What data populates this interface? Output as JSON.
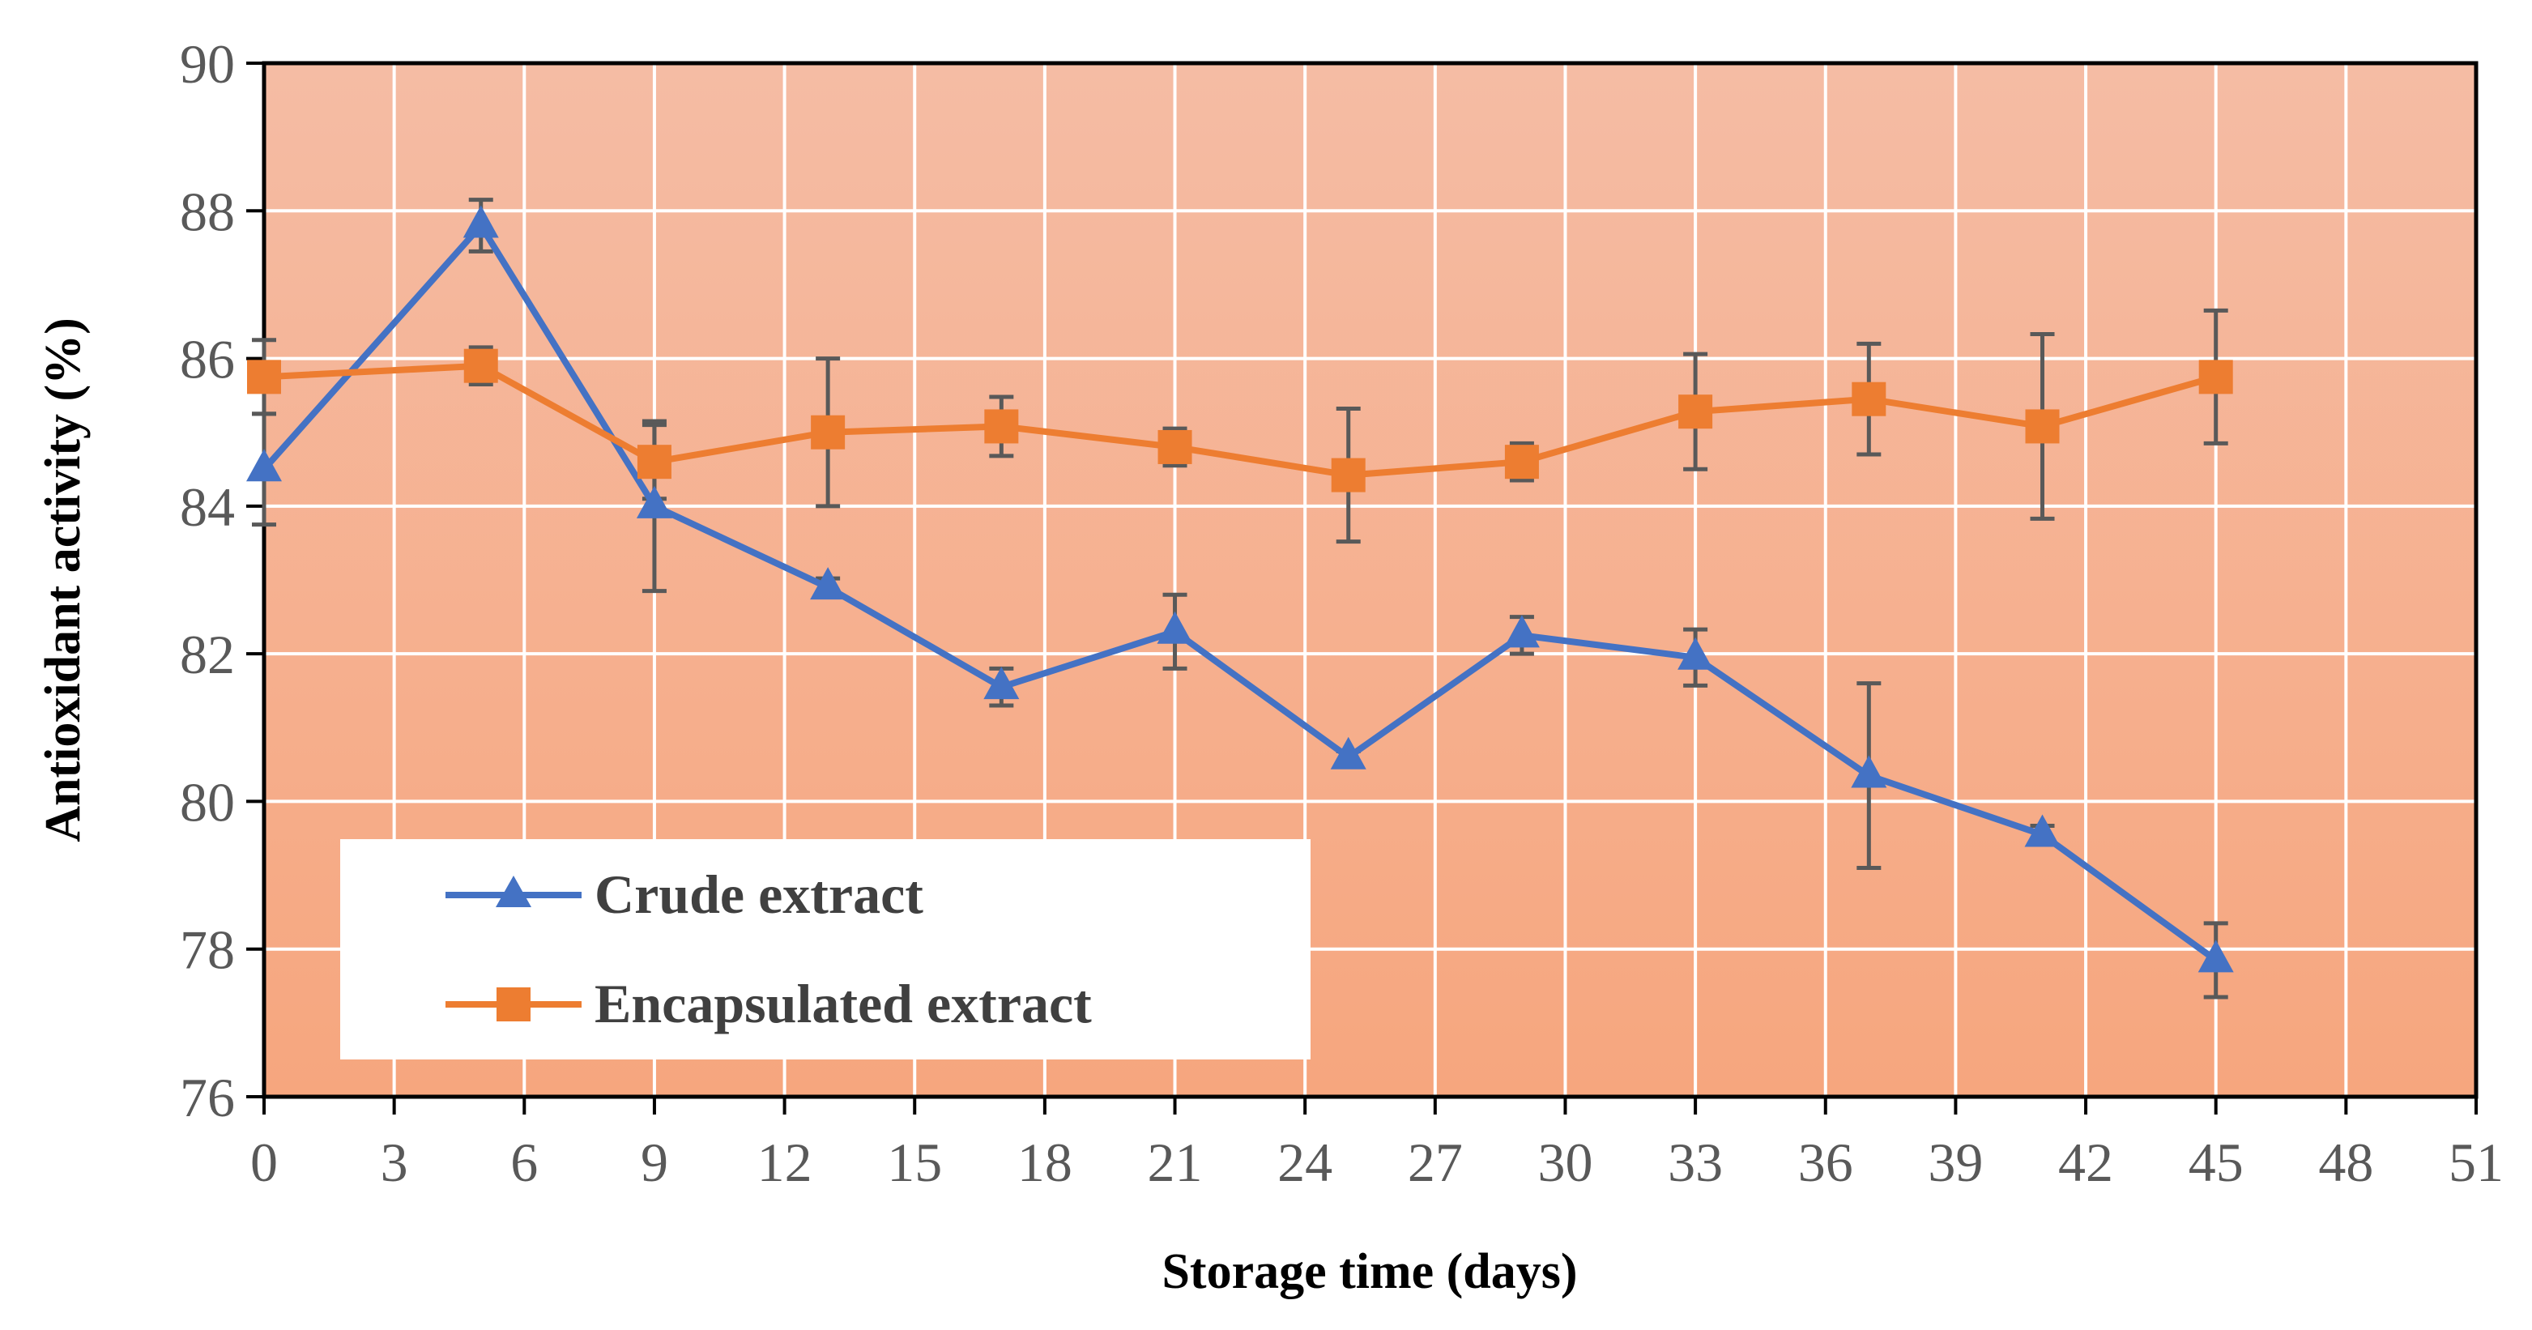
{
  "chart_data": {
    "type": "line",
    "title": "",
    "xlabel": "Storage time (days)",
    "ylabel": "Antioxidant activity (%)",
    "xlim": [
      0,
      51
    ],
    "ylim": [
      76,
      90
    ],
    "x_ticks": [
      0,
      3,
      6,
      9,
      12,
      15,
      18,
      21,
      24,
      27,
      30,
      33,
      36,
      39,
      42,
      45,
      48,
      51
    ],
    "y_ticks": [
      76,
      78,
      80,
      82,
      84,
      86,
      88,
      90
    ],
    "grid": true,
    "legend_position": "bottom-left",
    "x": [
      0,
      5,
      9,
      13,
      17,
      21,
      25,
      29,
      33,
      37,
      41,
      45
    ],
    "series": [
      {
        "name": "Crude extract",
        "color": "#4472C4",
        "marker": "triangle",
        "values": [
          84.5,
          87.8,
          84.0,
          82.9,
          81.55,
          82.3,
          80.6,
          82.25,
          81.95,
          80.35,
          79.55,
          77.85
        ],
        "errors": [
          0.75,
          0.35,
          1.15,
          0.12,
          0.25,
          0.5,
          0.08,
          0.25,
          0.38,
          1.25,
          0.12,
          0.5
        ]
      },
      {
        "name": "Encapsulated extract",
        "color": "#ED7D31",
        "marker": "square",
        "values": [
          85.75,
          85.9,
          84.6,
          85.0,
          85.08,
          84.8,
          84.42,
          84.6,
          85.28,
          85.45,
          85.08,
          85.75
        ],
        "errors": [
          0.5,
          0.25,
          0.5,
          1.0,
          0.4,
          0.25,
          0.9,
          0.25,
          0.78,
          0.75,
          1.25,
          0.9
        ]
      }
    ]
  },
  "colors": {
    "plot_bg_top": "#F5BCA4",
    "plot_bg_bottom": "#F6A67E",
    "grid": "#FFFFFF",
    "error_bar": "#595959"
  }
}
